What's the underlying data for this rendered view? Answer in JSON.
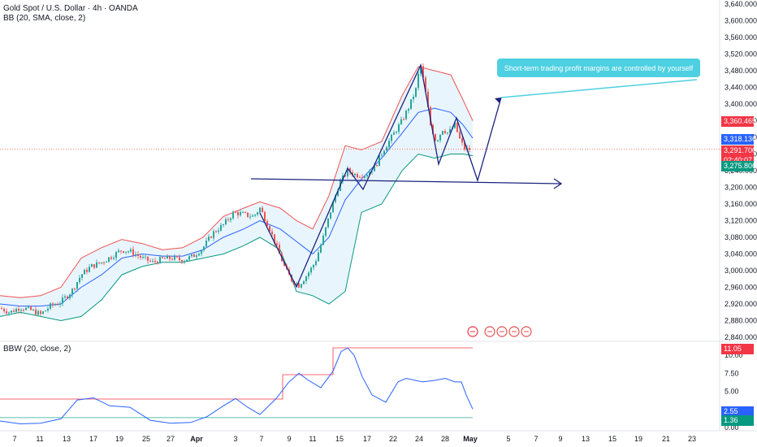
{
  "header": {
    "symbol_line": "Gold Spot / U.S. Dollar · 4h · OANDA",
    "indicator_main": "BB (20, SMA, close, 2)",
    "indicator_sub": "BBW (20, close, 2)"
  },
  "annotation": {
    "text": "Short-term trading profit margins are controlled by yourself"
  },
  "price_tags": {
    "upper_band": "3,360.465",
    "basis": "3,318.136",
    "last_price": "3,291.700",
    "countdown": "02:40:07",
    "lower_band": "3,275.806",
    "bbw_high": "11.05",
    "bbw_current": "2.55",
    "bbw_low": "1.36"
  },
  "colors": {
    "bull": "#26a69a",
    "bear": "#ef5350",
    "upper_band": "#f05252",
    "basis": "#2962ff",
    "lower_band": "#089981",
    "band_fill": "#e3f2fd",
    "pattern": "#1a237e",
    "annotation": "#4dd0e1",
    "bbw_line": "#2962ff",
    "bbw_highest": "#f23645",
    "bbw_lowest": "#22ab94"
  },
  "chart_data": [
    {
      "type": "candlestick",
      "title": "Gold Spot / U.S. Dollar · 4h · OANDA",
      "x_ticks": [
        "7",
        "11",
        "13",
        "17",
        "19",
        "25",
        "27",
        "Apr",
        "3",
        "7",
        "9",
        "11",
        "15",
        "17",
        "22",
        "24",
        "28",
        "May",
        "5",
        "7",
        "9",
        "13",
        "15",
        "19",
        "21",
        "23"
      ],
      "y_ticks": [
        2840,
        2880,
        2920,
        2960,
        3000,
        3040,
        3080,
        3120,
        3160,
        3200,
        3240,
        3280,
        3320,
        3360,
        3400,
        3440,
        3480,
        3520,
        3560,
        3600,
        3640
      ],
      "y_tick_labels": [
        "2,840.000",
        "2,880.000",
        "2,920.000",
        "2,960.000",
        "3,000.000",
        "3,040.000",
        "3,080.000",
        "3,120.000",
        "3,160.000",
        "3,200.000",
        "3,240.000",
        "3,280.000",
        "3,320.000",
        "3,360.000",
        "3,400.000",
        "3,440.000",
        "3,480.000",
        "3,520.000",
        "3,560.000",
        "3,600.000",
        "3,640.000"
      ],
      "ylim": [
        2840,
        3640
      ],
      "last_price": 3291.7,
      "close_path": [
        [
          0,
          2910
        ],
        [
          12,
          2900
        ],
        [
          25,
          2912
        ],
        [
          38,
          2905
        ],
        [
          50,
          2895
        ],
        [
          62,
          2915
        ],
        [
          75,
          2925
        ],
        [
          88,
          2950
        ],
        [
          100,
          2990
        ],
        [
          112,
          3010
        ],
        [
          125,
          3020
        ],
        [
          138,
          3035
        ],
        [
          150,
          3050
        ],
        [
          162,
          3045
        ],
        [
          175,
          3030
        ],
        [
          188,
          3020
        ],
        [
          200,
          3028
        ],
        [
          212,
          3030
        ],
        [
          225,
          3025
        ],
        [
          238,
          3035
        ],
        [
          250,
          3055
        ],
        [
          262,
          3090
        ],
        [
          275,
          3110
        ],
        [
          288,
          3140
        ],
        [
          300,
          3135
        ],
        [
          312,
          3130
        ],
        [
          320,
          3150
        ],
        [
          330,
          3110
        ],
        [
          340,
          3060
        ],
        [
          352,
          3000
        ],
        [
          360,
          2975
        ],
        [
          368,
          2965
        ],
        [
          378,
          2990
        ],
        [
          388,
          3020
        ],
        [
          398,
          3080
        ],
        [
          408,
          3150
        ],
        [
          418,
          3210
        ],
        [
          428,
          3240
        ],
        [
          438,
          3230
        ],
        [
          450,
          3230
        ],
        [
          462,
          3250
        ],
        [
          472,
          3290
        ],
        [
          482,
          3320
        ],
        [
          495,
          3360
        ],
        [
          505,
          3400
        ],
        [
          513,
          3440
        ],
        [
          517,
          3500
        ],
        [
          523,
          3440
        ],
        [
          530,
          3350
        ],
        [
          537,
          3310
        ],
        [
          545,
          3340
        ],
        [
          552,
          3330
        ],
        [
          560,
          3350
        ],
        [
          567,
          3310
        ],
        [
          573,
          3290
        ],
        [
          579,
          3292
        ]
      ],
      "bb_upper": [
        [
          0,
          2940
        ],
        [
          25,
          2935
        ],
        [
          50,
          2940
        ],
        [
          75,
          2960
        ],
        [
          100,
          3030
        ],
        [
          125,
          3055
        ],
        [
          150,
          3075
        ],
        [
          175,
          3065
        ],
        [
          200,
          3050
        ],
        [
          225,
          3055
        ],
        [
          250,
          3080
        ],
        [
          275,
          3130
        ],
        [
          300,
          3150
        ],
        [
          320,
          3165
        ],
        [
          345,
          3150
        ],
        [
          365,
          3120
        ],
        [
          385,
          3100
        ],
        [
          405,
          3180
        ],
        [
          425,
          3300
        ],
        [
          445,
          3290
        ],
        [
          470,
          3310
        ],
        [
          495,
          3420
        ],
        [
          515,
          3490
        ],
        [
          535,
          3480
        ],
        [
          555,
          3470
        ],
        [
          570,
          3410
        ],
        [
          582,
          3360
        ]
      ],
      "bb_basis": [
        [
          0,
          2920
        ],
        [
          25,
          2915
        ],
        [
          50,
          2915
        ],
        [
          75,
          2920
        ],
        [
          100,
          2960
        ],
        [
          125,
          2990
        ],
        [
          150,
          3030
        ],
        [
          175,
          3040
        ],
        [
          200,
          3035
        ],
        [
          225,
          3035
        ],
        [
          250,
          3050
        ],
        [
          275,
          3080
        ],
        [
          300,
          3100
        ],
        [
          320,
          3120
        ],
        [
          345,
          3100
        ],
        [
          365,
          3070
        ],
        [
          385,
          3040
        ],
        [
          405,
          3080
        ],
        [
          425,
          3170
        ],
        [
          445,
          3220
        ],
        [
          470,
          3270
        ],
        [
          495,
          3330
        ],
        [
          515,
          3380
        ],
        [
          535,
          3390
        ],
        [
          555,
          3380
        ],
        [
          570,
          3350
        ],
        [
          582,
          3318
        ]
      ],
      "bb_lower": [
        [
          0,
          2890
        ],
        [
          25,
          2900
        ],
        [
          50,
          2890
        ],
        [
          75,
          2880
        ],
        [
          100,
          2890
        ],
        [
          125,
          2930
        ],
        [
          150,
          2990
        ],
        [
          175,
          3010
        ],
        [
          200,
          3020
        ],
        [
          225,
          3020
        ],
        [
          250,
          3030
        ],
        [
          275,
          3040
        ],
        [
          300,
          3060
        ],
        [
          320,
          3080
        ],
        [
          345,
          3050
        ],
        [
          365,
          2950
        ],
        [
          385,
          2940
        ],
        [
          405,
          2920
        ],
        [
          425,
          2950
        ],
        [
          445,
          3140
        ],
        [
          470,
          3160
        ],
        [
          495,
          3240
        ],
        [
          515,
          3280
        ],
        [
          535,
          3270
        ],
        [
          555,
          3280
        ],
        [
          570,
          3280
        ],
        [
          582,
          3276
        ]
      ]
    },
    {
      "type": "line",
      "title": "BBW (20, close, 2)",
      "y_ticks": [
        0,
        2.5,
        5,
        7.5,
        10
      ],
      "y_tick_labels": [
        "0.00",
        "2.50",
        "5.00",
        "7.50",
        "10.00"
      ],
      "ylim": [
        0,
        11.5
      ],
      "bbw": [
        [
          0,
          0.9
        ],
        [
          25,
          0.5
        ],
        [
          50,
          0.6
        ],
        [
          75,
          1.2
        ],
        [
          95,
          3.8
        ],
        [
          115,
          4.1
        ],
        [
          135,
          3.0
        ],
        [
          160,
          2.8
        ],
        [
          185,
          1.0
        ],
        [
          210,
          0.6
        ],
        [
          235,
          0.7
        ],
        [
          255,
          1.5
        ],
        [
          275,
          3.0
        ],
        [
          290,
          4.0
        ],
        [
          305,
          2.8
        ],
        [
          320,
          1.8
        ],
        [
          340,
          4.0
        ],
        [
          355,
          6.2
        ],
        [
          368,
          7.5
        ],
        [
          380,
          6.5
        ],
        [
          395,
          5.5
        ],
        [
          410,
          7.8
        ],
        [
          420,
          10.5
        ],
        [
          428,
          11.0
        ],
        [
          436,
          10.0
        ],
        [
          446,
          7.0
        ],
        [
          458,
          4.5
        ],
        [
          475,
          3.5
        ],
        [
          490,
          6.3
        ],
        [
          500,
          6.8
        ],
        [
          520,
          6.3
        ],
        [
          535,
          6.5
        ],
        [
          548,
          6.8
        ],
        [
          560,
          6.3
        ],
        [
          568,
          6.3
        ],
        [
          574,
          4.5
        ],
        [
          582,
          2.55
        ]
      ],
      "highest": 11.05,
      "current": 2.55,
      "lowest": 1.36
    }
  ]
}
